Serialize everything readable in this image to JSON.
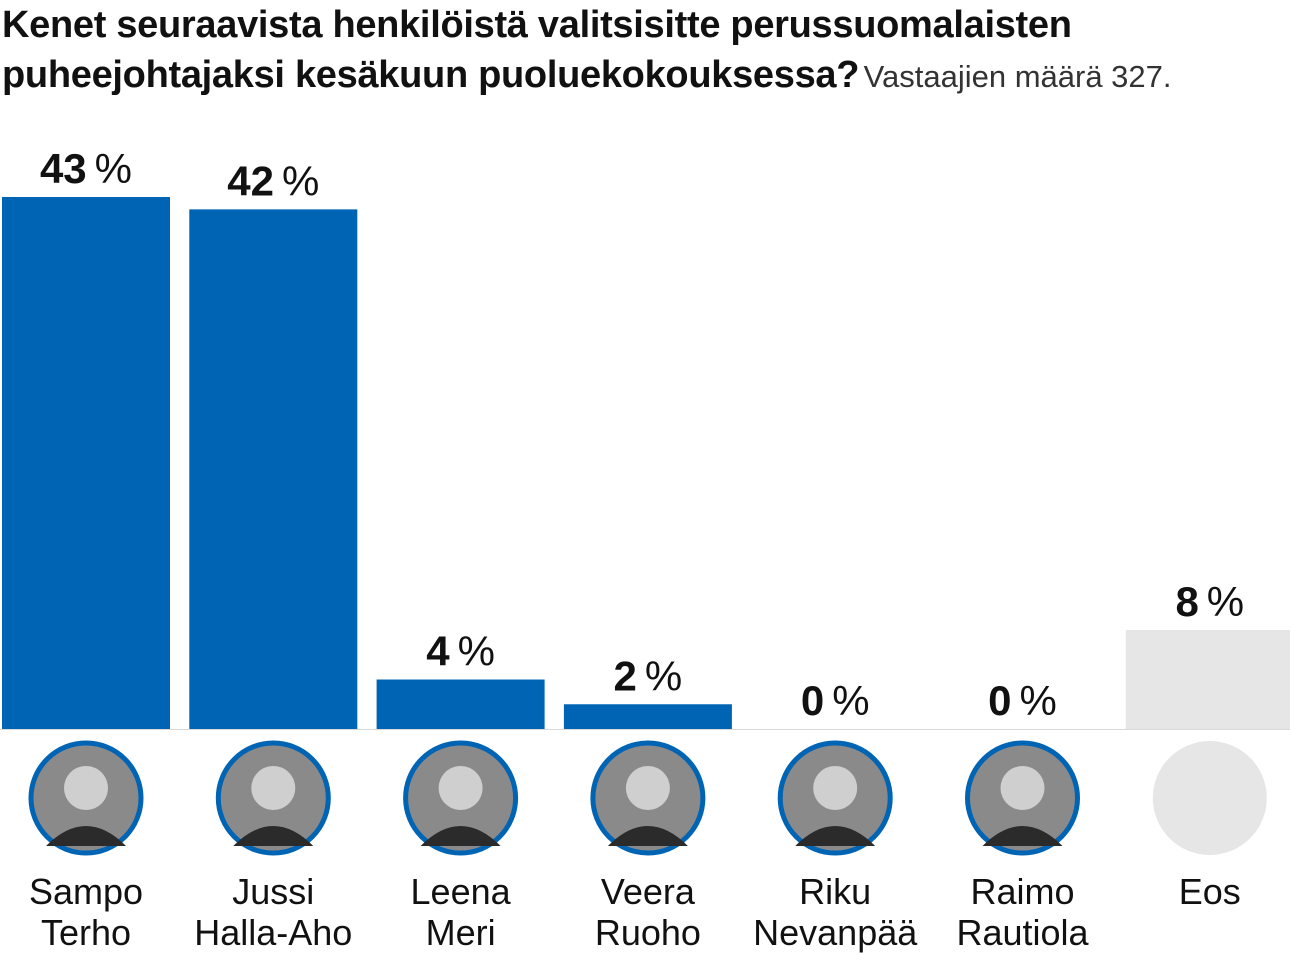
{
  "chart_data": {
    "type": "bar",
    "title": "Kenet seuraavista henkilöistä valitsisitte perussuomalaisten puheejohtajaksi kesäkuun puoluekokouksessa?",
    "subtitle": "Vastaajien määrä 327.",
    "categories": [
      [
        "Sampo",
        "Terho"
      ],
      [
        "Jussi",
        "Halla-Aho"
      ],
      [
        "Leena",
        "Meri"
      ],
      [
        "Veera",
        "Ruoho"
      ],
      [
        "Riku",
        "Nevanpää"
      ],
      [
        "Raimo",
        "Rautiola"
      ],
      [
        "Eos"
      ]
    ],
    "values": [
      43,
      42,
      4,
      2,
      0,
      0,
      8
    ],
    "value_labels": [
      "43",
      "42",
      "4",
      "2",
      "0",
      "0",
      "8"
    ],
    "unit": "%",
    "ylim": [
      0,
      43
    ],
    "grid": false,
    "legend": "none",
    "colors": [
      "#0064b4",
      "#0064b4",
      "#0064b4",
      "#0064b4",
      "#0064b4",
      "#0064b4",
      "#e6e6e6"
    ],
    "avatar_icons": [
      "portrait-photo",
      "portrait-photo",
      "portrait-photo",
      "portrait-photo",
      "portrait-photo",
      "portrait-photo",
      "empty-circle"
    ]
  }
}
